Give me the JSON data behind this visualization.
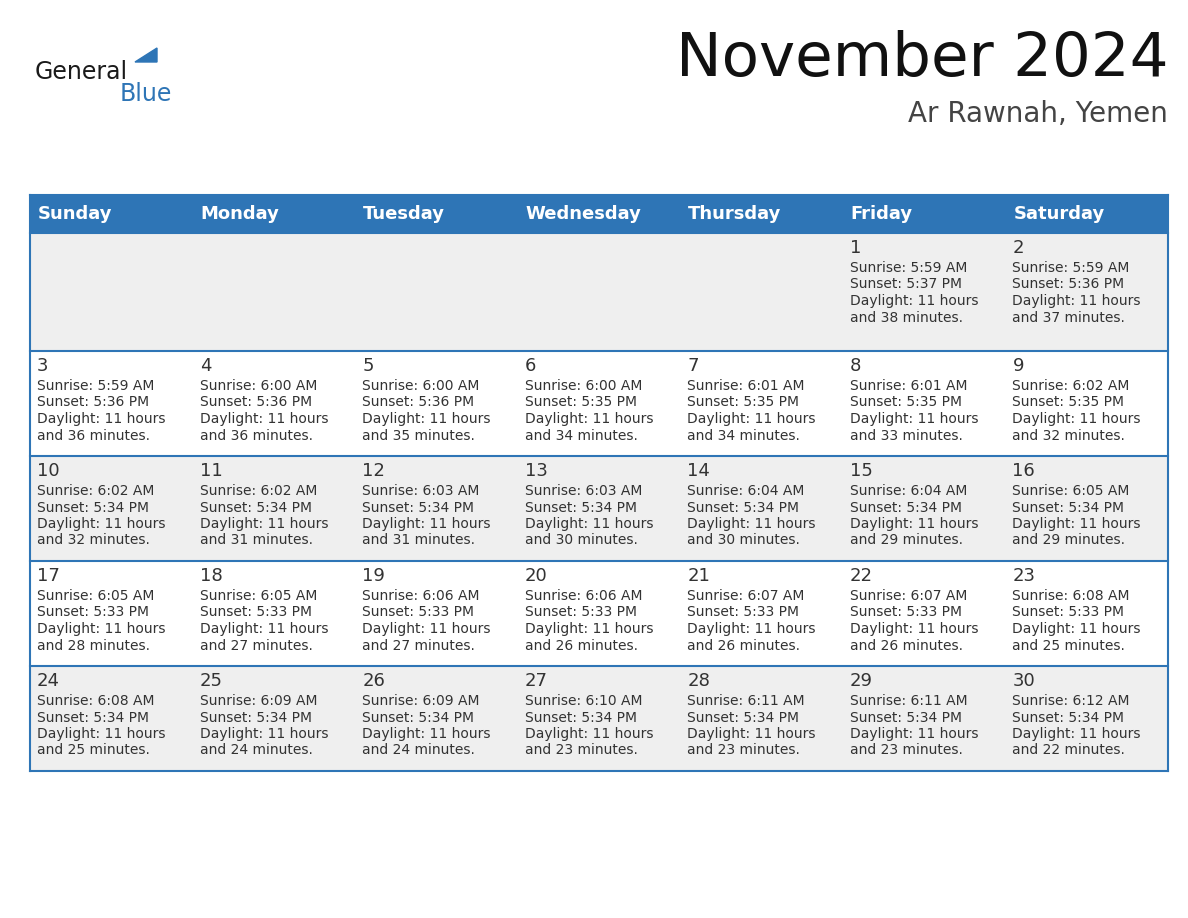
{
  "title": "November 2024",
  "subtitle": "Ar Rawnah, Yemen",
  "days_of_week": [
    "Sunday",
    "Monday",
    "Tuesday",
    "Wednesday",
    "Thursday",
    "Friday",
    "Saturday"
  ],
  "header_bg_color": "#2E75B6",
  "header_text_color": "#FFFFFF",
  "cell_bg_even": "#EFEFEF",
  "cell_bg_odd": "#FFFFFF",
  "cell_border_color": "#2E75B6",
  "day_number_color": "#333333",
  "cell_text_color": "#333333",
  "background_color": "#FFFFFF",
  "logo_general_color": "#1a1a1a",
  "logo_blue_color": "#2E75B6",
  "calendar_data": [
    [
      null,
      null,
      null,
      null,
      null,
      {
        "day": 1,
        "sunrise": "5:59 AM",
        "sunset": "5:37 PM",
        "daylight_hours": 11,
        "daylight_minutes": 38
      },
      {
        "day": 2,
        "sunrise": "5:59 AM",
        "sunset": "5:36 PM",
        "daylight_hours": 11,
        "daylight_minutes": 37
      }
    ],
    [
      {
        "day": 3,
        "sunrise": "5:59 AM",
        "sunset": "5:36 PM",
        "daylight_hours": 11,
        "daylight_minutes": 36
      },
      {
        "day": 4,
        "sunrise": "6:00 AM",
        "sunset": "5:36 PM",
        "daylight_hours": 11,
        "daylight_minutes": 36
      },
      {
        "day": 5,
        "sunrise": "6:00 AM",
        "sunset": "5:36 PM",
        "daylight_hours": 11,
        "daylight_minutes": 35
      },
      {
        "day": 6,
        "sunrise": "6:00 AM",
        "sunset": "5:35 PM",
        "daylight_hours": 11,
        "daylight_minutes": 34
      },
      {
        "day": 7,
        "sunrise": "6:01 AM",
        "sunset": "5:35 PM",
        "daylight_hours": 11,
        "daylight_minutes": 34
      },
      {
        "day": 8,
        "sunrise": "6:01 AM",
        "sunset": "5:35 PM",
        "daylight_hours": 11,
        "daylight_minutes": 33
      },
      {
        "day": 9,
        "sunrise": "6:02 AM",
        "sunset": "5:35 PM",
        "daylight_hours": 11,
        "daylight_minutes": 32
      }
    ],
    [
      {
        "day": 10,
        "sunrise": "6:02 AM",
        "sunset": "5:34 PM",
        "daylight_hours": 11,
        "daylight_minutes": 32
      },
      {
        "day": 11,
        "sunrise": "6:02 AM",
        "sunset": "5:34 PM",
        "daylight_hours": 11,
        "daylight_minutes": 31
      },
      {
        "day": 12,
        "sunrise": "6:03 AM",
        "sunset": "5:34 PM",
        "daylight_hours": 11,
        "daylight_minutes": 31
      },
      {
        "day": 13,
        "sunrise": "6:03 AM",
        "sunset": "5:34 PM",
        "daylight_hours": 11,
        "daylight_minutes": 30
      },
      {
        "day": 14,
        "sunrise": "6:04 AM",
        "sunset": "5:34 PM",
        "daylight_hours": 11,
        "daylight_minutes": 30
      },
      {
        "day": 15,
        "sunrise": "6:04 AM",
        "sunset": "5:34 PM",
        "daylight_hours": 11,
        "daylight_minutes": 29
      },
      {
        "day": 16,
        "sunrise": "6:05 AM",
        "sunset": "5:34 PM",
        "daylight_hours": 11,
        "daylight_minutes": 29
      }
    ],
    [
      {
        "day": 17,
        "sunrise": "6:05 AM",
        "sunset": "5:33 PM",
        "daylight_hours": 11,
        "daylight_minutes": 28
      },
      {
        "day": 18,
        "sunrise": "6:05 AM",
        "sunset": "5:33 PM",
        "daylight_hours": 11,
        "daylight_minutes": 27
      },
      {
        "day": 19,
        "sunrise": "6:06 AM",
        "sunset": "5:33 PM",
        "daylight_hours": 11,
        "daylight_minutes": 27
      },
      {
        "day": 20,
        "sunrise": "6:06 AM",
        "sunset": "5:33 PM",
        "daylight_hours": 11,
        "daylight_minutes": 26
      },
      {
        "day": 21,
        "sunrise": "6:07 AM",
        "sunset": "5:33 PM",
        "daylight_hours": 11,
        "daylight_minutes": 26
      },
      {
        "day": 22,
        "sunrise": "6:07 AM",
        "sunset": "5:33 PM",
        "daylight_hours": 11,
        "daylight_minutes": 26
      },
      {
        "day": 23,
        "sunrise": "6:08 AM",
        "sunset": "5:33 PM",
        "daylight_hours": 11,
        "daylight_minutes": 25
      }
    ],
    [
      {
        "day": 24,
        "sunrise": "6:08 AM",
        "sunset": "5:34 PM",
        "daylight_hours": 11,
        "daylight_minutes": 25
      },
      {
        "day": 25,
        "sunrise": "6:09 AM",
        "sunset": "5:34 PM",
        "daylight_hours": 11,
        "daylight_minutes": 24
      },
      {
        "day": 26,
        "sunrise": "6:09 AM",
        "sunset": "5:34 PM",
        "daylight_hours": 11,
        "daylight_minutes": 24
      },
      {
        "day": 27,
        "sunrise": "6:10 AM",
        "sunset": "5:34 PM",
        "daylight_hours": 11,
        "daylight_minutes": 23
      },
      {
        "day": 28,
        "sunrise": "6:11 AM",
        "sunset": "5:34 PM",
        "daylight_hours": 11,
        "daylight_minutes": 23
      },
      {
        "day": 29,
        "sunrise": "6:11 AM",
        "sunset": "5:34 PM",
        "daylight_hours": 11,
        "daylight_minutes": 23
      },
      {
        "day": 30,
        "sunrise": "6:12 AM",
        "sunset": "5:34 PM",
        "daylight_hours": 11,
        "daylight_minutes": 22
      }
    ]
  ]
}
